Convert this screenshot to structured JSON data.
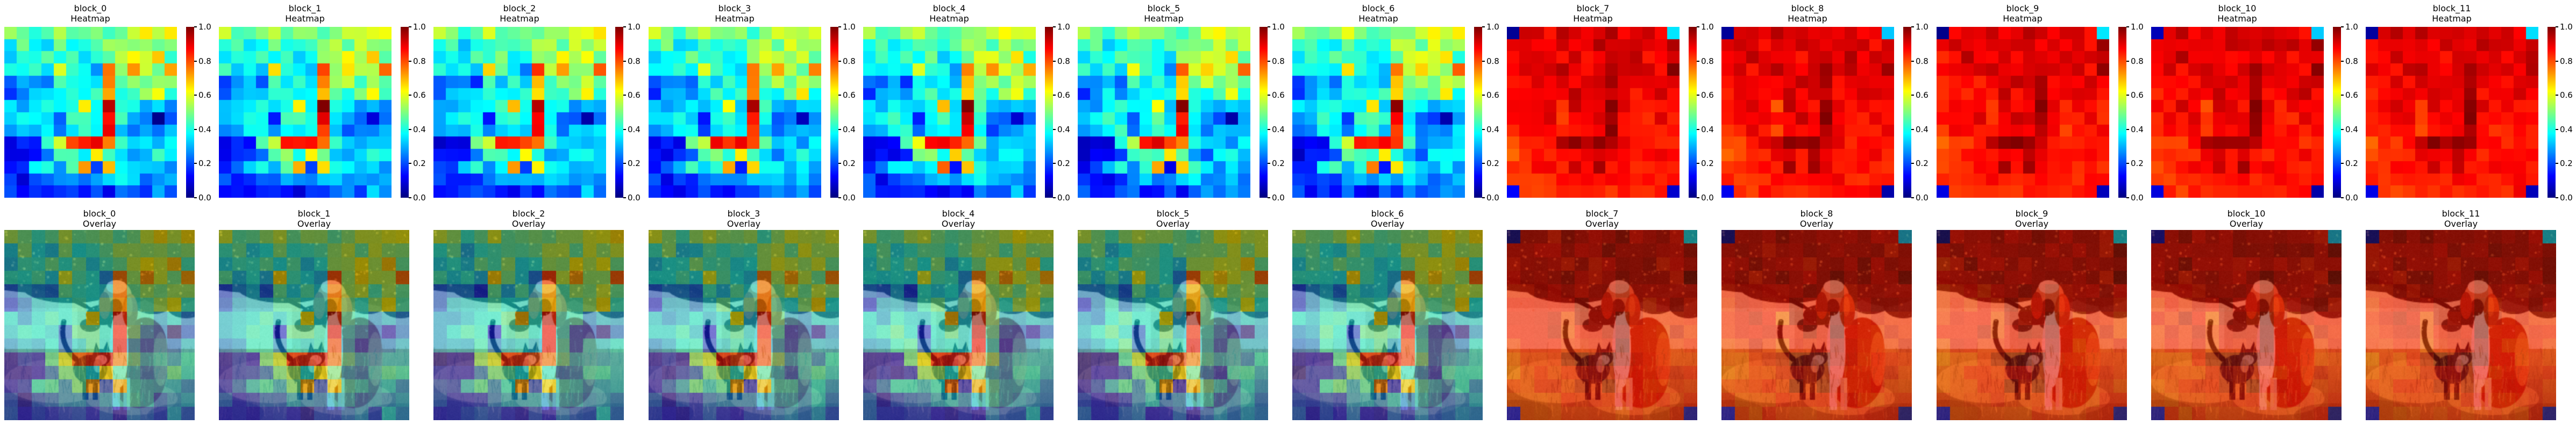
{
  "figure": {
    "type": "attention-visualization-figure",
    "background": "#ffffff",
    "grid_layout": {
      "rows": 2,
      "cols": 12
    },
    "rows": [
      {
        "name": "heatmap-row",
        "subtitle": "Heatmap"
      },
      {
        "name": "overlay-row",
        "subtitle": "Overlay"
      }
    ]
  },
  "colorbar": {
    "colormap": "jet",
    "min": 0.0,
    "max": 1.0,
    "ticks": [
      "1.0",
      "0.8",
      "0.6",
      "0.4",
      "0.2",
      "0.0"
    ]
  },
  "photo": {
    "description": "red-furred dog sitting behind a dark tabby cat standing in a sunlit grassy field with dark tree foliage above",
    "colors": {
      "foliage": "#32200c",
      "branch": "#281607",
      "light_band": "#dfc28c",
      "band_highlight": "#f0dca6",
      "band_right": "#ead193",
      "grass_top": "#c1913c",
      "grass_bottom": "#6e5522",
      "sunlit_grass": "#dfae52",
      "grass_stroke_light": "#d9a848",
      "grass_stroke_dark": "#6e5a20",
      "dog_body": "#a83a0e",
      "dog_haunch": "#9a2e0a",
      "dog_rim_light": "#d07828",
      "dog_chest": "#ead9c2",
      "dog_leg_a": "#e3cdb0",
      "dog_leg_b": "#cfa87c",
      "dog_head": "#c8763a",
      "dog_crown": "#e5c193",
      "dog_muzzle": "#5c230a",
      "dog_ear": "#8a2e0c",
      "dog_ear_right": "#b24812",
      "dog_ear_highlight": "#d06c20",
      "cat_body": "#2e2620",
      "cat_head": "#3a2e24",
      "cat_face": "#c6b29c",
      "cat_chest": "#9a8a74",
      "cat_leg": "#221a12",
      "speckle": "#d89a4a",
      "seed_dot": "#f2e0aa",
      "corner_shadow": "#4a3814"
    }
  },
  "chart_data": {
    "type": "heatmap",
    "grid": [
      14,
      14
    ],
    "value_range": [
      0,
      1
    ],
    "colormap": "jet",
    "overlay_alpha": 0.5,
    "noise_amplitude": {
      "early": 0.05,
      "late": 0.03
    },
    "blocks": [
      {
        "label": "block_0",
        "pattern": "early",
        "seed": 1
      },
      {
        "label": "block_1",
        "pattern": "early",
        "seed": 2
      },
      {
        "label": "block_2",
        "pattern": "early",
        "seed": 3
      },
      {
        "label": "block_3",
        "pattern": "early",
        "seed": 4
      },
      {
        "label": "block_4",
        "pattern": "early",
        "seed": 5
      },
      {
        "label": "block_5",
        "pattern": "early",
        "seed": 6
      },
      {
        "label": "block_6",
        "pattern": "early",
        "seed": 7
      },
      {
        "label": "block_7",
        "pattern": "late",
        "seed": 8
      },
      {
        "label": "block_8",
        "pattern": "late",
        "seed": 9
      },
      {
        "label": "block_9",
        "pattern": "late",
        "seed": 10
      },
      {
        "label": "block_10",
        "pattern": "late",
        "seed": 11
      },
      {
        "label": "block_11",
        "pattern": "late",
        "seed": 12
      }
    ],
    "patterns": {
      "early": [
        [
          0.55,
          0.48,
          0.44,
          0.5,
          0.56,
          0.5,
          0.48,
          0.5,
          0.46,
          0.48,
          0.56,
          0.6,
          0.57,
          0.62
        ],
        [
          0.38,
          0.5,
          0.33,
          0.37,
          0.47,
          0.42,
          0.42,
          0.43,
          0.52,
          0.55,
          0.47,
          0.57,
          0.5,
          0.55
        ],
        [
          0.32,
          0.42,
          0.36,
          0.46,
          0.4,
          0.47,
          0.35,
          0.37,
          0.5,
          0.55,
          0.6,
          0.54,
          0.63,
          0.45
        ],
        [
          0.42,
          0.36,
          0.43,
          0.32,
          0.62,
          0.46,
          0.38,
          0.28,
          0.8,
          0.55,
          0.7,
          0.56,
          0.5,
          0.75
        ],
        [
          0.22,
          0.26,
          0.3,
          0.2,
          0.42,
          0.35,
          0.4,
          0.32,
          0.72,
          0.48,
          0.55,
          0.44,
          0.55,
          0.5
        ],
        [
          0.2,
          0.28,
          0.35,
          0.3,
          0.38,
          0.42,
          0.35,
          0.4,
          0.7,
          0.44,
          0.4,
          0.5,
          0.62,
          0.4
        ],
        [
          0.32,
          0.3,
          0.35,
          0.38,
          0.35,
          0.4,
          0.65,
          0.35,
          0.97,
          0.42,
          0.35,
          0.3,
          0.35,
          0.3
        ],
        [
          0.3,
          0.35,
          0.4,
          0.35,
          0.18,
          0.4,
          0.45,
          0.38,
          0.88,
          0.4,
          0.25,
          0.2,
          0.05,
          0.25
        ],
        [
          0.25,
          0.3,
          0.35,
          0.4,
          0.22,
          0.35,
          0.4,
          0.35,
          0.85,
          0.35,
          0.22,
          0.3,
          0.28,
          0.32
        ],
        [
          0.1,
          0.13,
          0.12,
          0.45,
          0.6,
          0.85,
          0.87,
          0.85,
          0.78,
          0.45,
          0.3,
          0.33,
          0.3,
          0.34
        ],
        [
          0.1,
          0.13,
          0.15,
          0.2,
          0.46,
          0.48,
          0.4,
          0.63,
          0.45,
          0.32,
          0.25,
          0.35,
          0.4,
          0.35
        ],
        [
          0.15,
          0.2,
          0.35,
          0.4,
          0.3,
          0.42,
          0.75,
          0.15,
          0.65,
          0.4,
          0.35,
          0.3,
          0.35,
          0.3
        ],
        [
          0.2,
          0.12,
          0.15,
          0.2,
          0.25,
          0.3,
          0.28,
          0.3,
          0.3,
          0.35,
          0.3,
          0.25,
          0.3,
          0.28
        ],
        [
          0.18,
          0.1,
          0.15,
          0.18,
          0.2,
          0.15,
          0.12,
          0.18,
          0.15,
          0.22,
          0.25,
          0.2,
          0.3,
          0.22
        ]
      ],
      "late": [
        [
          0.04,
          0.9,
          0.92,
          0.88,
          0.93,
          0.9,
          0.91,
          0.92,
          0.93,
          0.9,
          0.92,
          0.9,
          0.88,
          0.33
        ],
        [
          0.88,
          0.92,
          0.9,
          0.88,
          0.91,
          0.89,
          0.92,
          0.93,
          0.9,
          0.93,
          0.9,
          0.92,
          0.88,
          0.95
        ],
        [
          0.86,
          0.88,
          0.93,
          0.89,
          0.87,
          0.91,
          0.88,
          0.9,
          0.92,
          0.9,
          0.93,
          0.88,
          0.9,
          0.92
        ],
        [
          0.88,
          0.9,
          0.88,
          0.92,
          0.93,
          0.9,
          0.88,
          0.93,
          0.95,
          0.9,
          0.92,
          0.9,
          0.88,
          0.98
        ],
        [
          0.84,
          0.87,
          0.89,
          0.86,
          0.9,
          0.88,
          0.92,
          0.9,
          0.94,
          0.89,
          0.9,
          0.88,
          0.92,
          0.9
        ],
        [
          0.85,
          0.88,
          0.86,
          0.89,
          0.87,
          0.92,
          0.88,
          0.9,
          0.95,
          0.88,
          0.87,
          0.9,
          0.93,
          0.88
        ],
        [
          0.86,
          0.87,
          0.9,
          0.88,
          0.8,
          0.93,
          0.89,
          0.88,
          0.99,
          0.89,
          0.86,
          0.87,
          0.88,
          0.86
        ],
        [
          0.85,
          0.88,
          0.87,
          0.89,
          0.84,
          0.88,
          0.91,
          0.89,
          0.98,
          0.88,
          0.84,
          0.83,
          0.9,
          0.85
        ],
        [
          0.83,
          0.86,
          0.88,
          0.87,
          0.83,
          0.87,
          0.89,
          0.88,
          0.97,
          0.87,
          0.83,
          0.86,
          0.85,
          0.87
        ],
        [
          0.8,
          0.82,
          0.83,
          0.88,
          0.96,
          0.98,
          0.97,
          0.98,
          0.95,
          0.88,
          0.85,
          0.86,
          0.84,
          0.86
        ],
        [
          0.8,
          0.82,
          0.84,
          0.85,
          0.88,
          0.89,
          0.87,
          0.93,
          0.88,
          0.85,
          0.84,
          0.86,
          0.87,
          0.85
        ],
        [
          0.82,
          0.84,
          0.86,
          0.87,
          0.85,
          0.94,
          0.84,
          0.96,
          0.88,
          0.87,
          0.86,
          0.85,
          0.86,
          0.85
        ],
        [
          0.84,
          0.83,
          0.82,
          0.85,
          0.86,
          0.87,
          0.86,
          0.87,
          0.86,
          0.87,
          0.86,
          0.85,
          0.86,
          0.86
        ],
        [
          0.12,
          0.84,
          0.83,
          0.84,
          0.85,
          0.84,
          0.83,
          0.85,
          0.84,
          0.85,
          0.86,
          0.85,
          0.87,
          0.06
        ]
      ]
    }
  }
}
